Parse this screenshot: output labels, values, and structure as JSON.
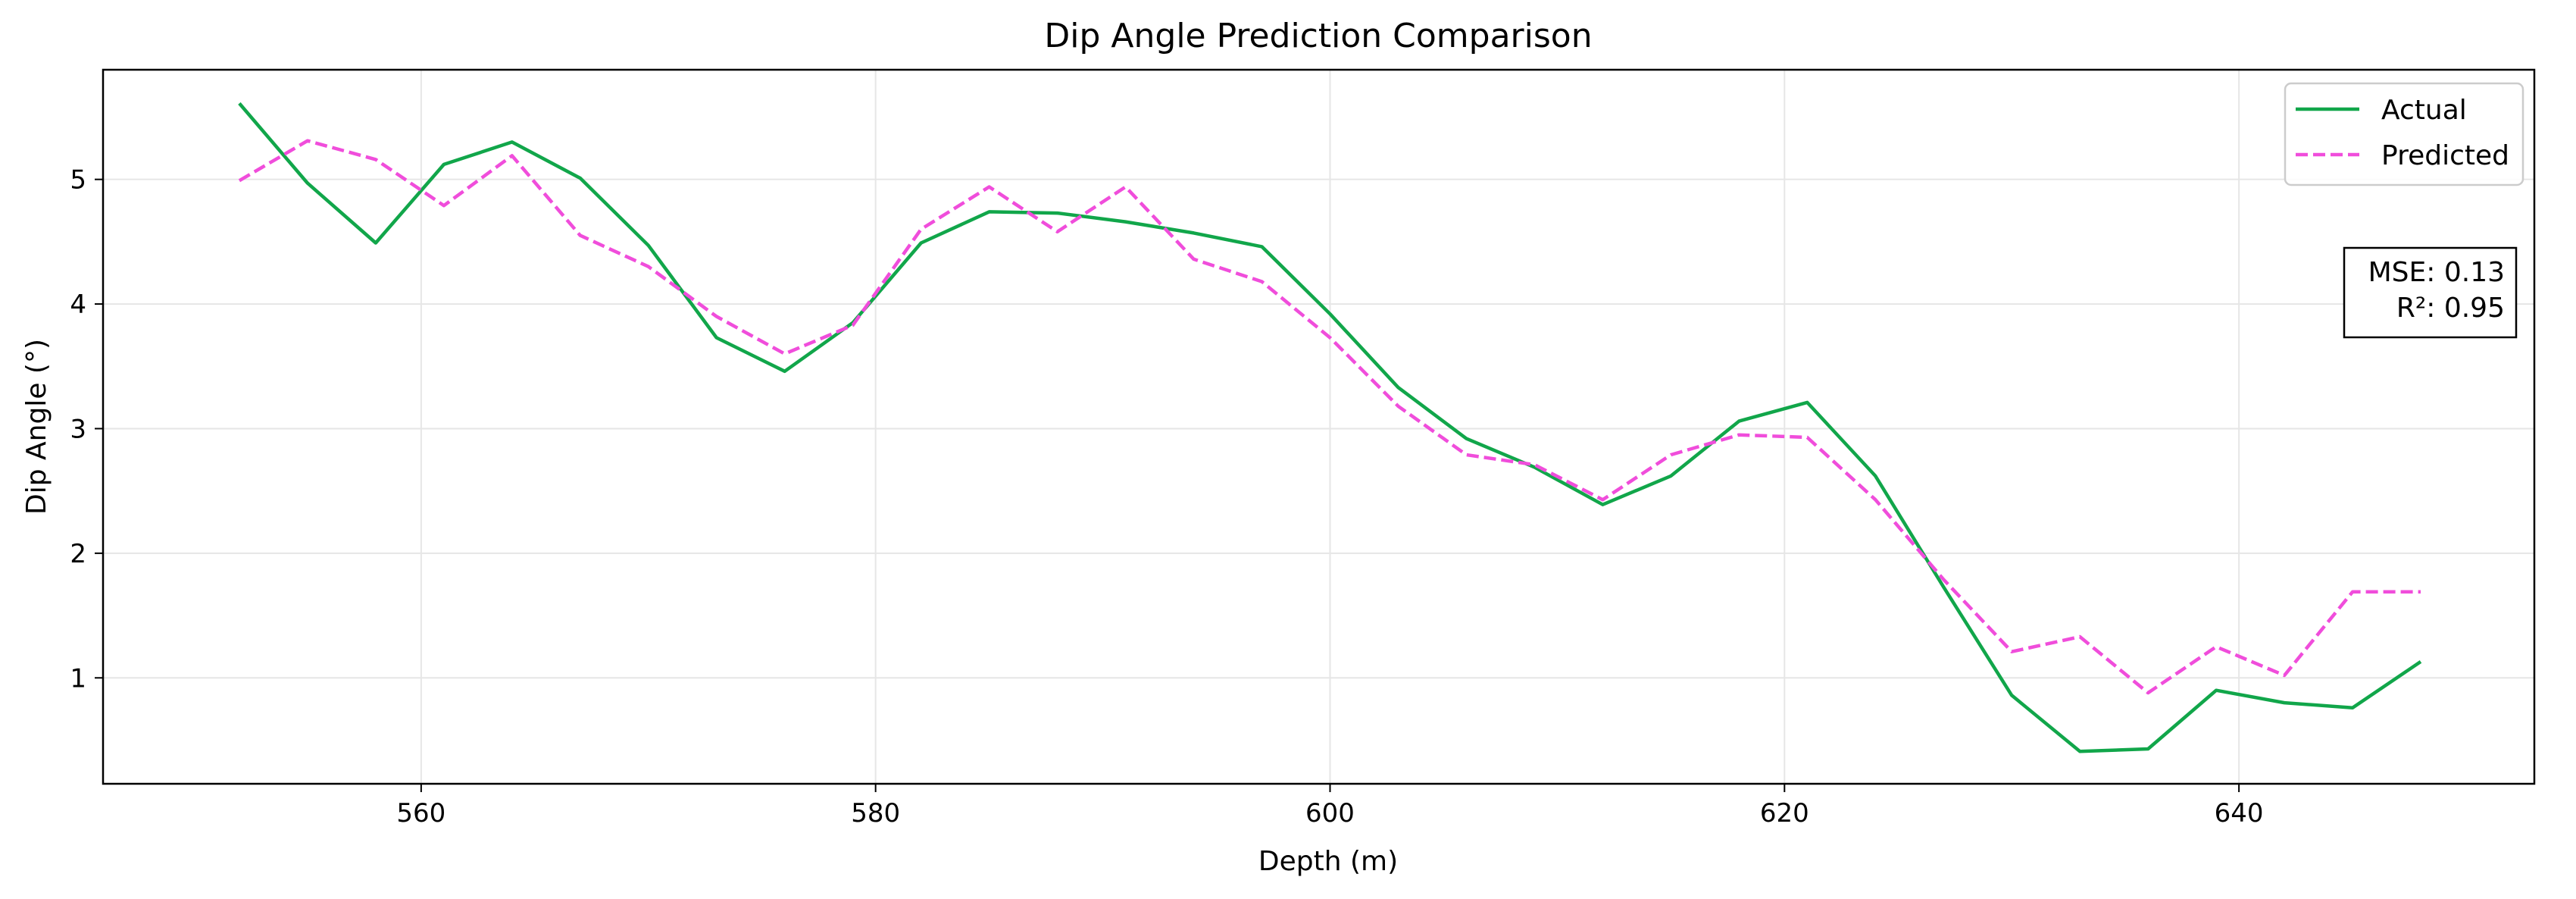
{
  "chart_data": {
    "type": "line",
    "title": "Dip Angle Prediction Comparison",
    "xlabel": "Depth (m)",
    "ylabel": "Dip Angle (°)",
    "xlim": [
      546,
      653
    ],
    "ylim": [
      0.15,
      5.88
    ],
    "xticks": [
      560,
      580,
      600,
      620,
      640
    ],
    "yticks": [
      1,
      2,
      3,
      4,
      5
    ],
    "grid": true,
    "legend_position": "top-right",
    "x": [
      552,
      555,
      558,
      561,
      564,
      567,
      570,
      573,
      576,
      579,
      582,
      585,
      588,
      591,
      594,
      597,
      600,
      603,
      606,
      609,
      612,
      615,
      618,
      621,
      624,
      627,
      630,
      633,
      636,
      639,
      642,
      645,
      648
    ],
    "series": [
      {
        "name": "Actual",
        "color": "#11a64a",
        "style": "solid",
        "values": [
          5.61,
          4.97,
          4.49,
          5.12,
          5.3,
          5.01,
          4.47,
          3.73,
          3.46,
          3.85,
          4.49,
          4.74,
          4.73,
          4.66,
          4.57,
          4.46,
          3.92,
          3.33,
          2.92,
          2.69,
          2.39,
          2.62,
          3.06,
          3.21,
          2.62,
          1.73,
          0.86,
          0.41,
          0.43,
          0.9,
          0.8,
          0.76,
          1.13
        ]
      },
      {
        "name": "Predicted",
        "color": "#f04ddb",
        "style": "dashed",
        "values": [
          4.99,
          5.31,
          5.16,
          4.79,
          5.19,
          4.55,
          4.3,
          3.9,
          3.6,
          3.83,
          4.6,
          4.94,
          4.58,
          4.94,
          4.36,
          4.18,
          3.73,
          3.18,
          2.79,
          2.71,
          2.43,
          2.79,
          2.95,
          2.93,
          2.43,
          1.79,
          1.21,
          1.33,
          0.88,
          1.25,
          1.02,
          1.69,
          1.69
        ]
      }
    ],
    "annotations": {
      "mse": "MSE: 0.13",
      "r2": "R²: 0.95"
    }
  }
}
